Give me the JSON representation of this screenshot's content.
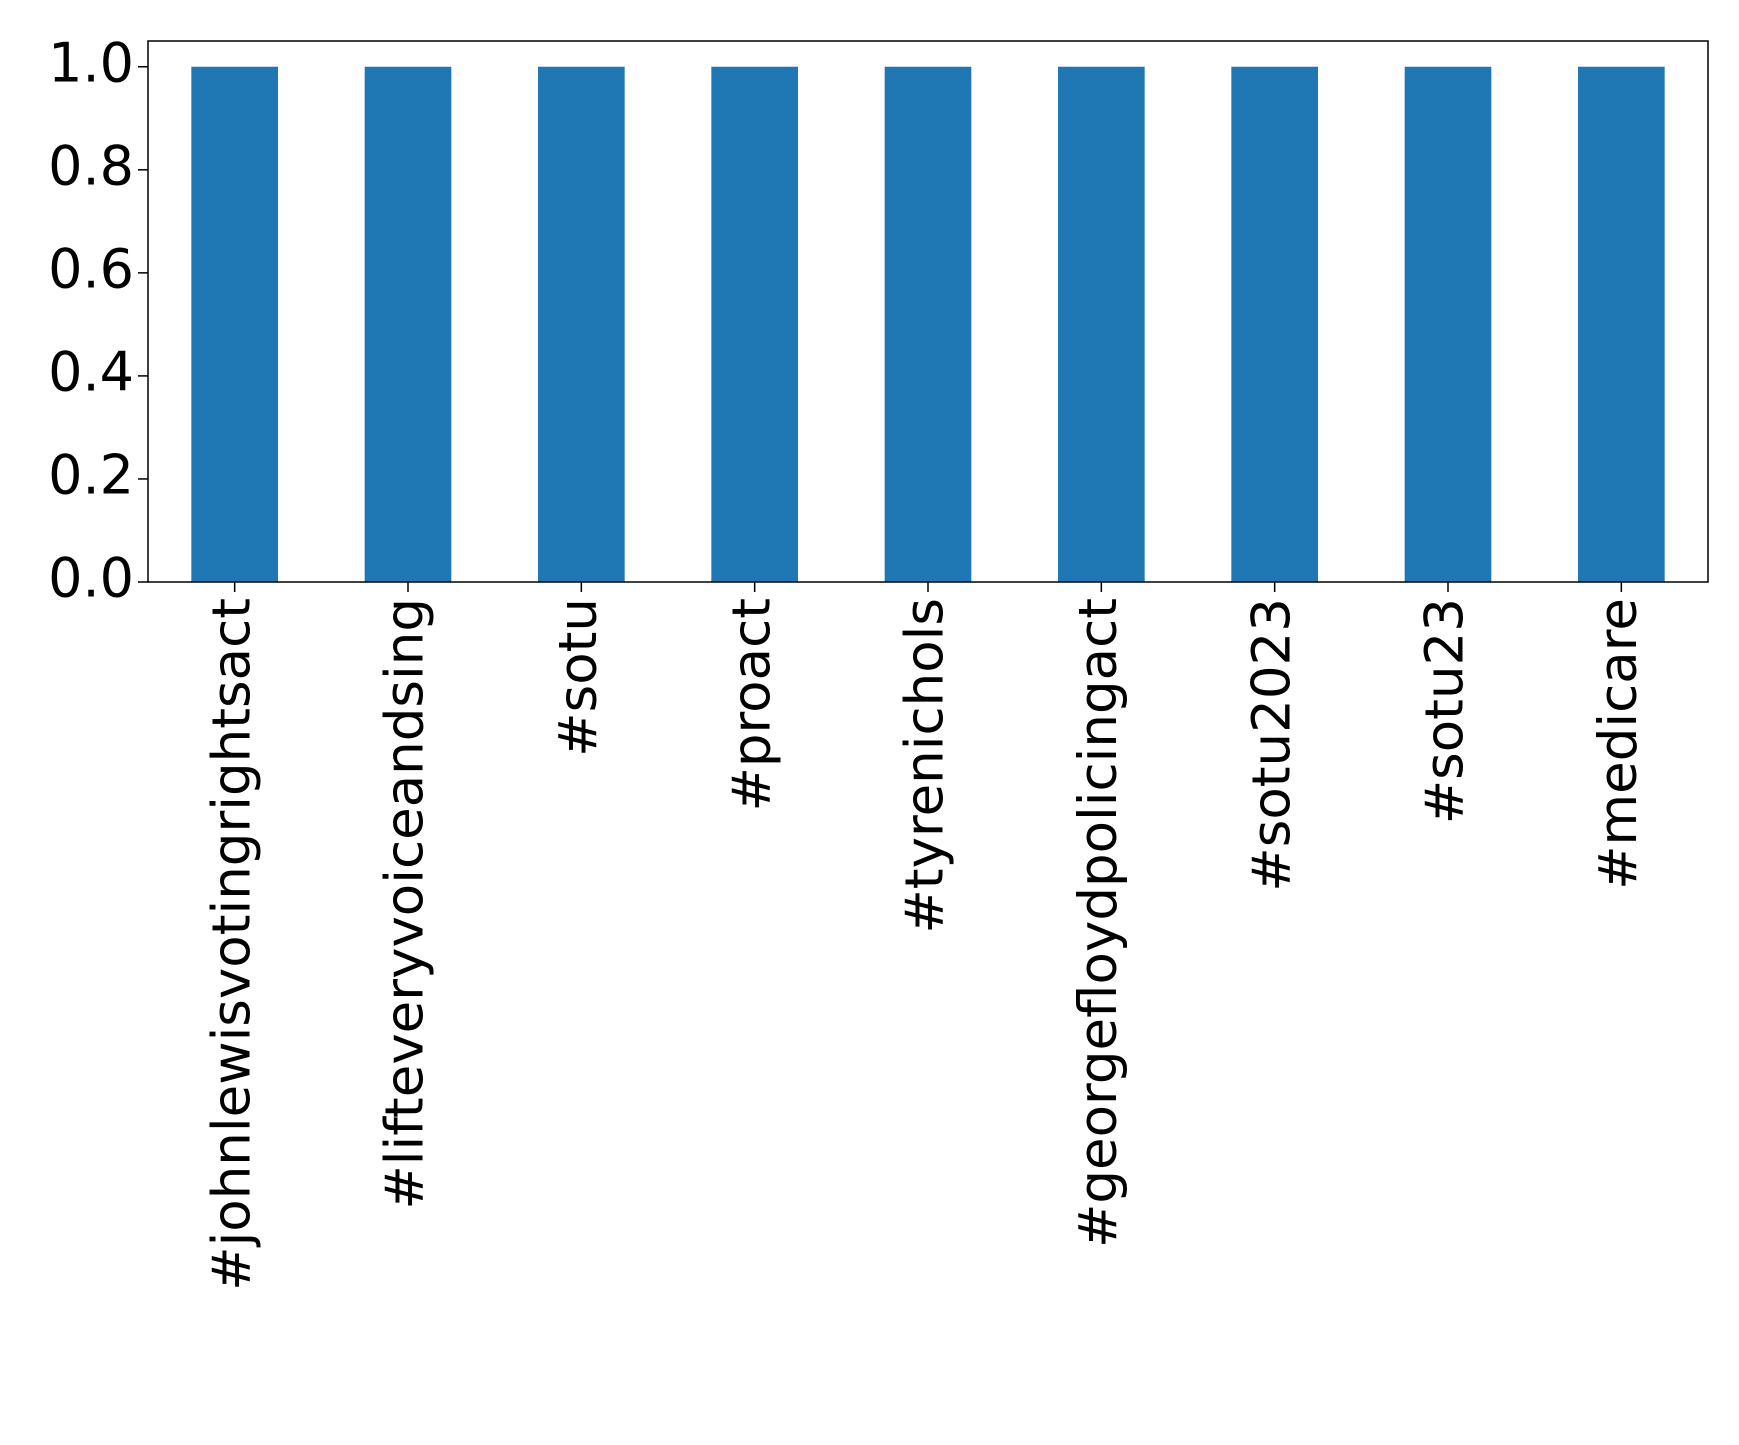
{
  "chart_data": {
    "type": "bar",
    "categories": [
      "#johnlewisvotingrightsact",
      "#lifteveryvoiceandsing",
      "#sotu",
      "#proact",
      "#tyrenichols",
      "#georgefloydpolicingact",
      "#sotu2023",
      "#sotu23",
      "#medicare"
    ],
    "values": [
      1,
      1,
      1,
      1,
      1,
      1,
      1,
      1,
      1
    ],
    "color": "#1f77b4",
    "ylim": [
      0,
      1.05
    ],
    "yticks": [
      {
        "value": 0,
        "label": "0.0"
      },
      0.2,
      0.4,
      0.6,
      0.8,
      {
        "value": 1,
        "label": "1.0"
      }
    ],
    "grid": false
  }
}
